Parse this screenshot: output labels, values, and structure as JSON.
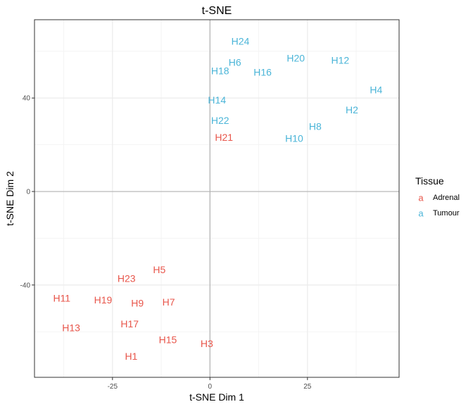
{
  "chart_data": {
    "type": "scatter",
    "marker": "text-label",
    "title": "t-SNE",
    "xlabel": "t-SNE Dim 1",
    "ylabel": "t-SNE Dim 2",
    "xlim": [
      -45,
      48.5
    ],
    "ylim": [
      -79.5,
      73.5
    ],
    "x_ticks": [
      -25,
      0,
      25
    ],
    "x_tick_labels": [
      "-25",
      "0",
      "25"
    ],
    "y_ticks": [
      -40,
      0,
      40
    ],
    "y_tick_labels": [
      "-40",
      "0",
      "40"
    ],
    "x_minor_ticks": [
      -37.5,
      -12.5,
      12.5,
      37.5
    ],
    "y_minor_ticks": [
      -60,
      -20,
      20,
      60
    ],
    "zero_lines": true,
    "grid": true,
    "theme": "bw",
    "legend": {
      "title": "Tissue",
      "position": "right",
      "key_glyph": "a",
      "entries": [
        {
          "label": "Adrenal",
          "color": "#E8564B"
        },
        {
          "label": "Tumour",
          "color": "#4BB5D8"
        }
      ]
    },
    "series": [
      {
        "name": "Adrenal",
        "color": "#E8564B",
        "points": [
          {
            "label": "H21",
            "x": 3.6,
            "y": 23.2
          },
          {
            "label": "H5",
            "x": -13,
            "y": -33.4
          },
          {
            "label": "H23",
            "x": -21.4,
            "y": -37.2
          },
          {
            "label": "H11",
            "x": -38,
            "y": -45.6
          },
          {
            "label": "H19",
            "x": -27.4,
            "y": -46.4
          },
          {
            "label": "H9",
            "x": -18.6,
            "y": -47.8
          },
          {
            "label": "H7",
            "x": -10.6,
            "y": -47.2
          },
          {
            "label": "H13",
            "x": -35.6,
            "y": -58.2
          },
          {
            "label": "H17",
            "x": -20.6,
            "y": -56.6
          },
          {
            "label": "H15",
            "x": -10.8,
            "y": -63.4
          },
          {
            "label": "H3",
            "x": -0.8,
            "y": -65.1
          },
          {
            "label": "H1",
            "x": -20.2,
            "y": -70.5
          }
        ]
      },
      {
        "name": "Tumour",
        "color": "#4BB5D8",
        "points": [
          {
            "label": "H24",
            "x": 7.8,
            "y": 64.3
          },
          {
            "label": "H6",
            "x": 6.4,
            "y": 55.3
          },
          {
            "label": "H18",
            "x": 2.6,
            "y": 51.7
          },
          {
            "label": "H16",
            "x": 13.5,
            "y": 51.0
          },
          {
            "label": "H20",
            "x": 22.0,
            "y": 57.1
          },
          {
            "label": "H12",
            "x": 33.4,
            "y": 56.2
          },
          {
            "label": "H4",
            "x": 42.6,
            "y": 43.5
          },
          {
            "label": "H14",
            "x": 1.8,
            "y": 39.2
          },
          {
            "label": "H2",
            "x": 36.4,
            "y": 35.0
          },
          {
            "label": "H22",
            "x": 2.6,
            "y": 30.4
          },
          {
            "label": "H8",
            "x": 27.0,
            "y": 27.9
          },
          {
            "label": "H10",
            "x": 21.6,
            "y": 22.8
          }
        ]
      }
    ]
  }
}
